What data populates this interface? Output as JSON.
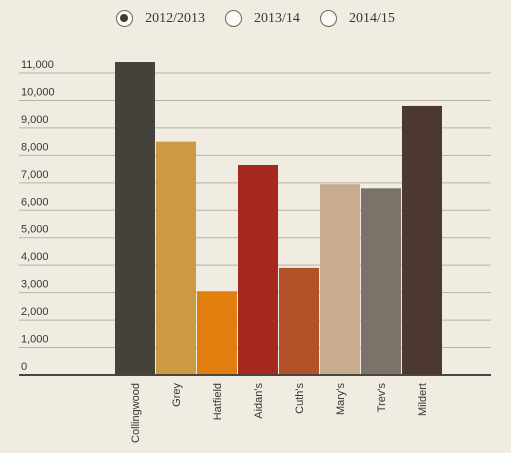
{
  "legend": {
    "options": [
      {
        "label": "2012/2013",
        "checked": true
      },
      {
        "label": "2013/14",
        "checked": false
      },
      {
        "label": "2014/15",
        "checked": false
      }
    ]
  },
  "chart_data": {
    "type": "bar",
    "series": [
      {
        "name": "2012/2013",
        "values": [
          11400,
          8500,
          3050,
          7650,
          3900,
          6950,
          6800,
          9800
        ]
      }
    ],
    "categories": [
      "Collingwood",
      "Grey",
      "Hatfield",
      "Aidan's",
      "Cuth's",
      "Mary's",
      "Trev's",
      "Mildert"
    ],
    "values": [
      11400,
      8500,
      3050,
      7650,
      3900,
      6950,
      6800,
      9800
    ],
    "colors": [
      "#45413b",
      "#cc9a45",
      "#e17e0e",
      "#a7281f",
      "#b35229",
      "#c9ab8d",
      "#7b7269",
      "#4c3830"
    ],
    "yticks": [
      0,
      1000,
      2000,
      3000,
      4000,
      5000,
      6000,
      7000,
      8000,
      9000,
      10000,
      11000
    ],
    "ytick_labels": [
      "0",
      "1,000",
      "2,000",
      "3,000",
      "4,000",
      "5,000",
      "6,000",
      "7,000",
      "8,000",
      "9,000",
      "10,000",
      "11,000"
    ],
    "ylim": [
      0,
      11000
    ],
    "grid": true,
    "title": "",
    "xlabel": "",
    "ylabel": ""
  }
}
